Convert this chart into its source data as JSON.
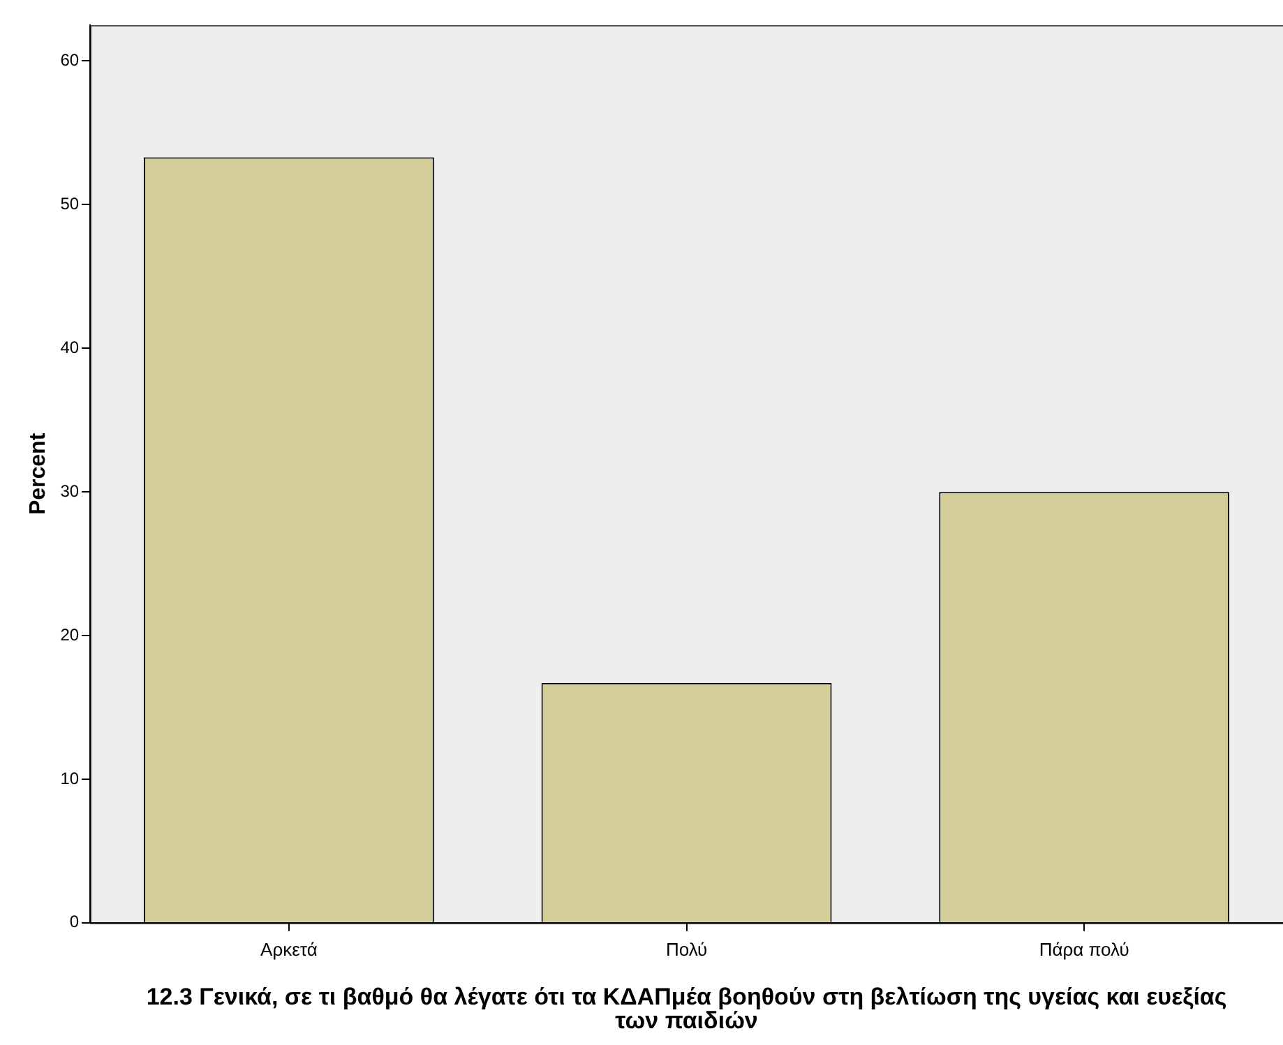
{
  "chart_data": {
    "type": "bar",
    "xlabel": "12.3 Γενικά, σε τι βαθμό θα λέγατε ότι τα ΚΔΑΠμέα βοηθούν στη βελτίωση της υγείας και ευεξίας των παιδιών",
    "ylabel": "Percent",
    "categories": [
      "Αρκετά",
      "Πολύ",
      "Πάρα πολύ"
    ],
    "values": [
      53.3,
      16.7,
      30.0
    ],
    "color": "#d3ce97",
    "ylim": [
      0,
      62.5
    ],
    "yticks": [
      0,
      10,
      20,
      30,
      40,
      50,
      60
    ],
    "grid": false,
    "legend": false
  }
}
